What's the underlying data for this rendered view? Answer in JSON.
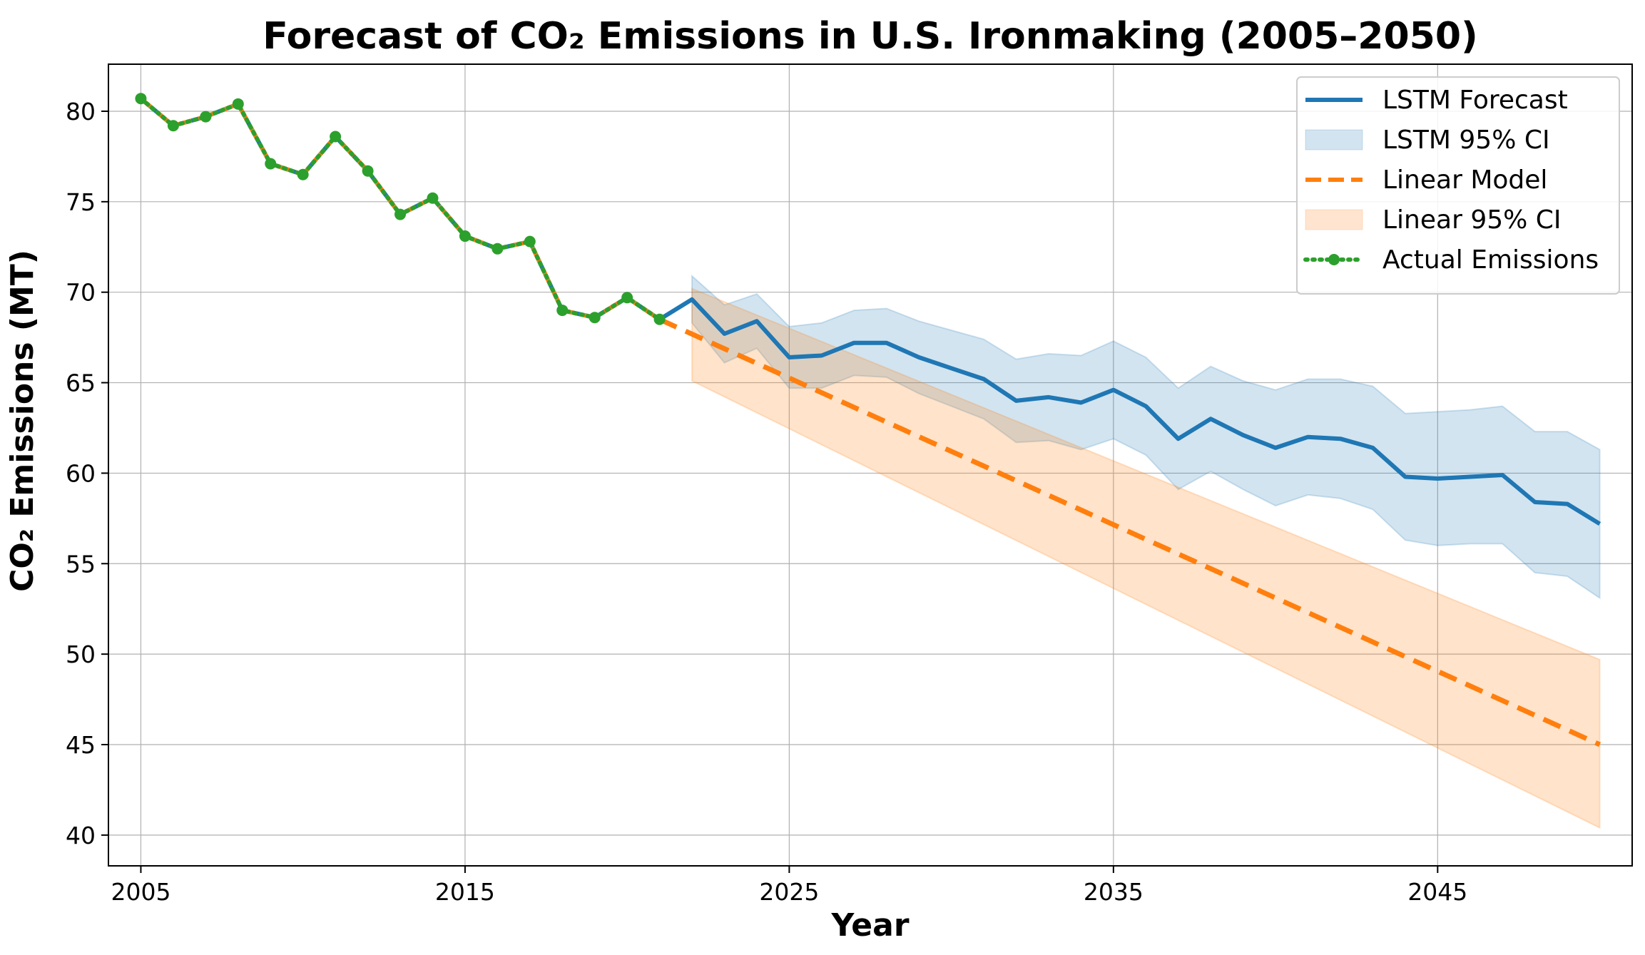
{
  "chart_data": {
    "type": "line",
    "title": "Forecast of CO₂ Emissions in U.S. Ironmaking (2005–2050)",
    "xlabel": "Year",
    "ylabel": "CO₂ Emissions (MT)",
    "xlim": [
      2004,
      2051
    ],
    "ylim": [
      38.3,
      82.6
    ],
    "xticks": [
      2005,
      2015,
      2025,
      2035,
      2045
    ],
    "yticks": [
      40,
      45,
      50,
      55,
      60,
      65,
      70,
      75,
      80
    ],
    "grid": true,
    "legend_position": "top-right",
    "colors": {
      "lstm": "#1f77b4",
      "lstm_ci": "#1f77b4",
      "linear": "#ff7f0e",
      "linear_ci": "#ff7f0e",
      "actual": "#2ca02c"
    },
    "legend": [
      {
        "label": "LSTM Forecast",
        "kind": "line",
        "color": "#1f77b4"
      },
      {
        "label": "LSTM 95% CI",
        "kind": "patch",
        "color": "#1f77b4"
      },
      {
        "label": "Linear Model",
        "kind": "dashed",
        "color": "#ff7f0e"
      },
      {
        "label": "Linear 95% CI",
        "kind": "patch",
        "color": "#ff7f0e"
      },
      {
        "label": "Actual Emissions",
        "kind": "dotted-marker",
        "color": "#2ca02c"
      }
    ],
    "actual": {
      "name": "Actual Emissions",
      "x": [
        2005,
        2006,
        2007,
        2008,
        2009,
        2010,
        2011,
        2012,
        2013,
        2014,
        2015,
        2016,
        2017,
        2018,
        2019,
        2020,
        2021
      ],
      "y": [
        80.7,
        79.2,
        79.7,
        80.4,
        77.1,
        76.5,
        78.6,
        76.7,
        74.3,
        75.2,
        73.1,
        72.4,
        72.8,
        69.0,
        68.6,
        69.7,
        68.5
      ]
    },
    "lstm": {
      "name": "LSTM Forecast",
      "x": [
        2022,
        2023,
        2024,
        2025,
        2026,
        2027,
        2028,
        2029,
        2030,
        2031,
        2032,
        2033,
        2034,
        2035,
        2036,
        2037,
        2038,
        2039,
        2040,
        2041,
        2042,
        2043,
        2044,
        2045,
        2046,
        2047,
        2048,
        2049,
        2050
      ],
      "y": [
        69.6,
        67.7,
        68.4,
        66.4,
        66.5,
        67.2,
        67.2,
        66.4,
        65.8,
        65.2,
        64.0,
        64.2,
        63.9,
        64.6,
        63.7,
        61.9,
        63.0,
        62.1,
        61.4,
        62.0,
        61.9,
        61.4,
        59.8,
        59.7,
        59.8,
        59.9,
        58.4,
        58.3,
        57.2
      ],
      "ci_upper": [
        70.9,
        69.3,
        69.9,
        68.1,
        68.3,
        69.0,
        69.1,
        68.4,
        67.9,
        67.4,
        66.3,
        66.6,
        66.5,
        67.3,
        66.4,
        64.7,
        65.9,
        65.1,
        64.6,
        65.2,
        65.2,
        64.8,
        63.3,
        63.4,
        63.5,
        63.7,
        62.3,
        62.3,
        61.3
      ],
      "ci_lower": [
        68.3,
        66.1,
        66.9,
        64.7,
        64.7,
        65.4,
        65.3,
        64.4,
        63.7,
        63.0,
        61.7,
        61.8,
        61.3,
        61.9,
        61.0,
        59.1,
        60.1,
        59.1,
        58.2,
        58.8,
        58.6,
        58.0,
        56.3,
        56.0,
        56.1,
        56.1,
        54.5,
        54.3,
        53.1
      ]
    },
    "linear": {
      "name": "Linear Model",
      "x": [
        2021,
        2050
      ],
      "y": [
        68.5,
        45.0
      ],
      "ci_x": [
        2022,
        2050
      ],
      "ci_upper": [
        70.2,
        49.7
      ],
      "ci_lower": [
        65.1,
        40.4
      ]
    }
  }
}
